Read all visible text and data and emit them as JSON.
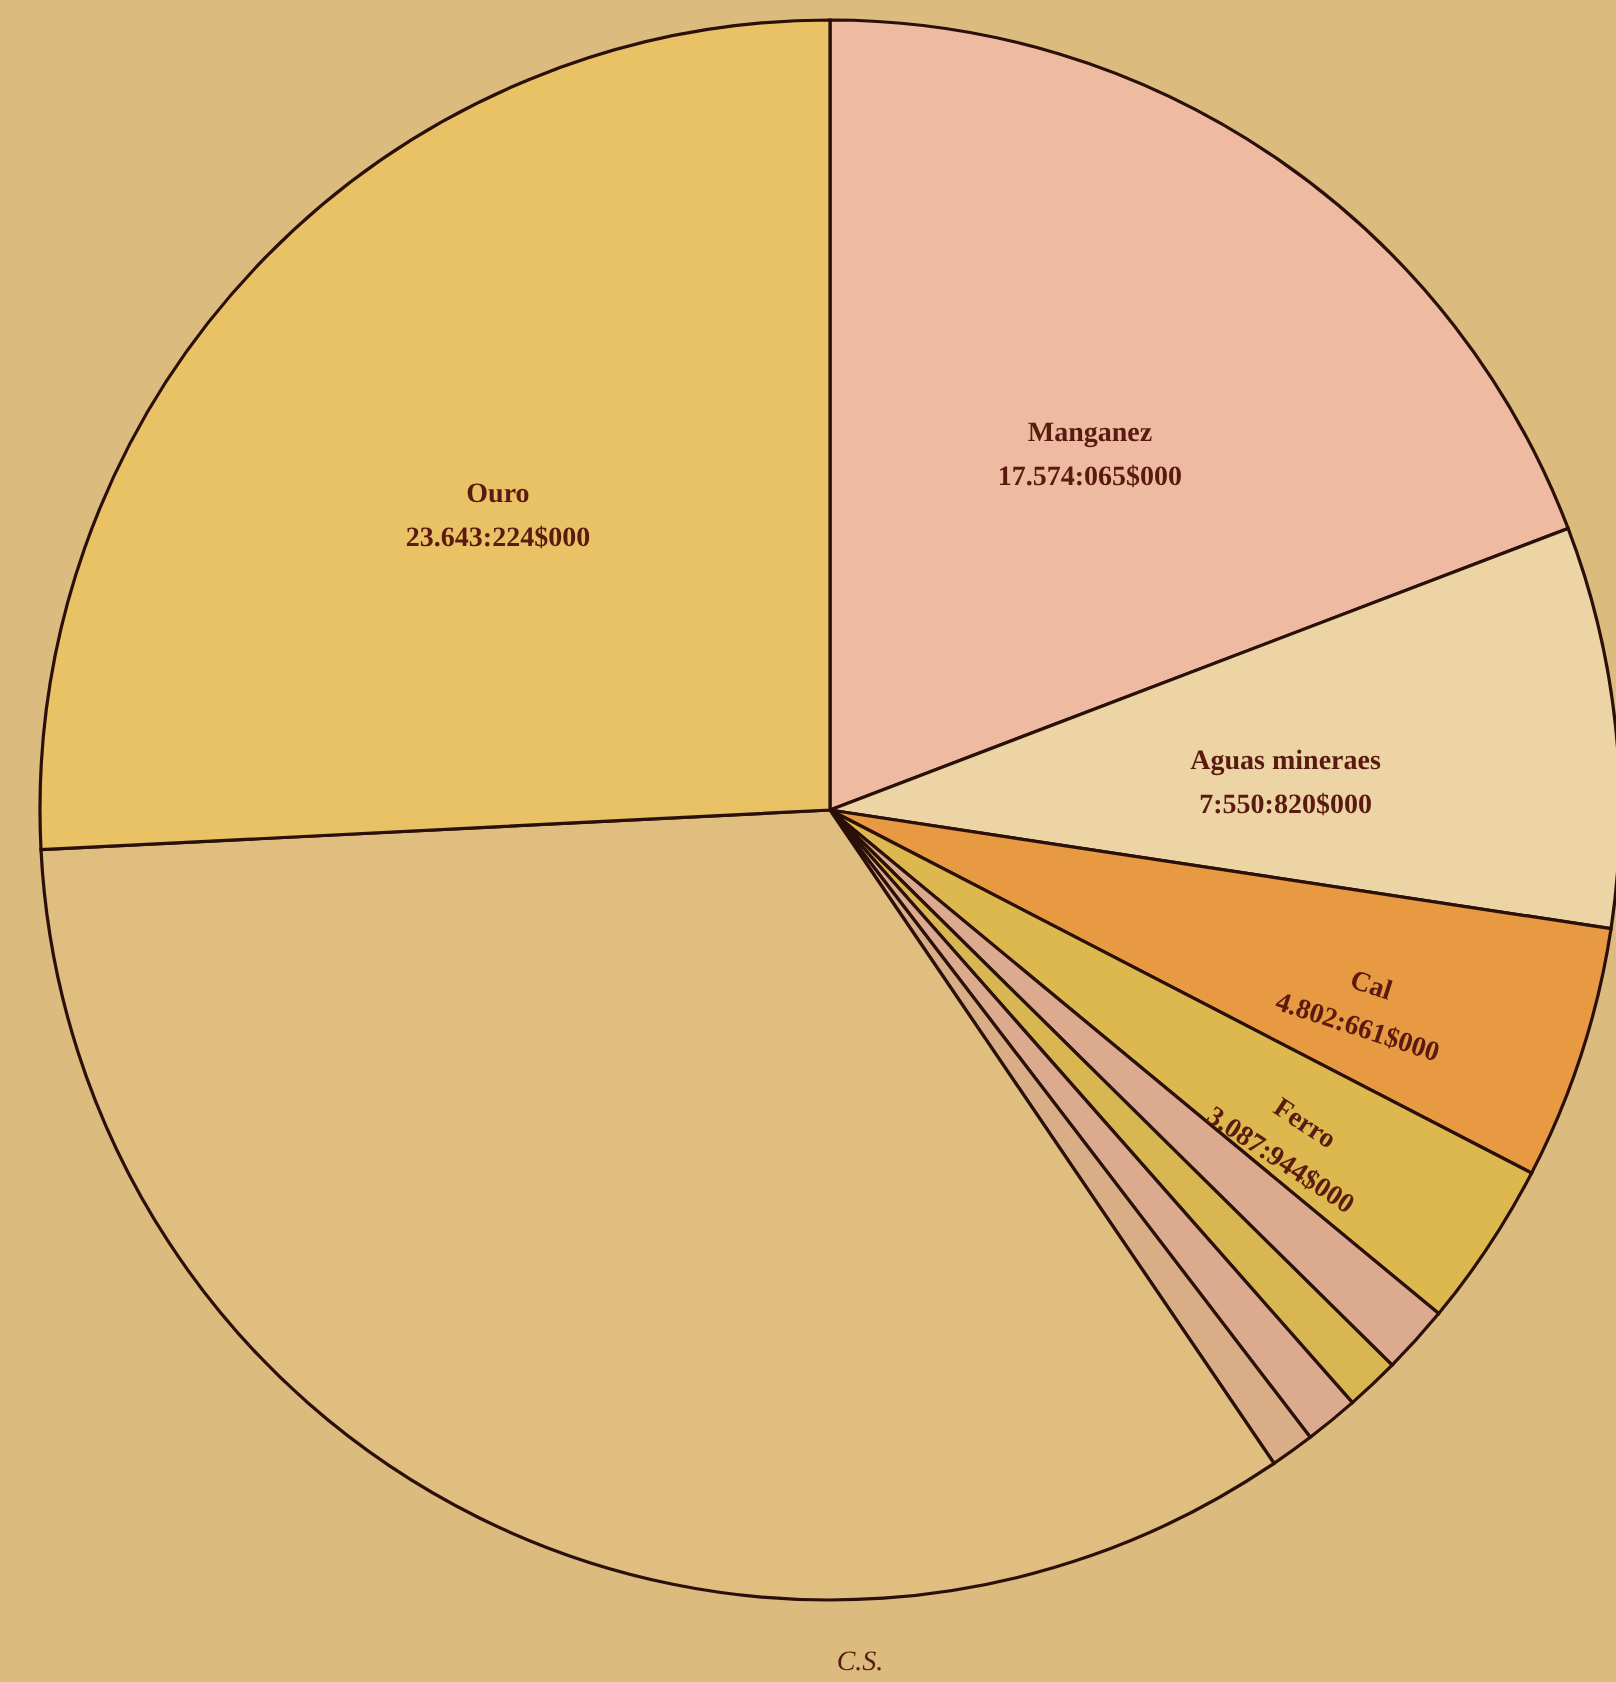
{
  "chart_data": {
    "type": "pie",
    "categories": [
      "Manganez",
      "Aguas mineraes",
      "Cal",
      "Ferro",
      null,
      null,
      null,
      null,
      null,
      "Ouro"
    ],
    "values": [
      19.2,
      8.2,
      5.2,
      3.4,
      1.4,
      1.1,
      1.1,
      0.9,
      33.7,
      25.8
    ],
    "value_labels": [
      "17.574:065$000",
      "7:550:820$000",
      "4.802:661$000",
      "3.087:944$000",
      null,
      null,
      null,
      null,
      null,
      "23.643:224$000"
    ],
    "colors": [
      "#eebaa2",
      "#ecd4a4",
      "#e89a42",
      "#dcb84e",
      "#dcaa8e",
      "#d8b652",
      "#dcaa8e",
      "#d9ae86",
      "#dfbe80",
      "#e9c266"
    ],
    "annotations": [
      "C.S."
    ]
  }
}
